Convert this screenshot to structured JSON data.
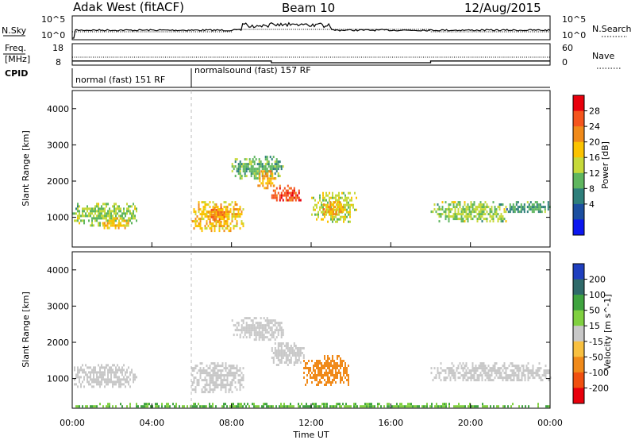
{
  "header": {
    "radar_title": "Adak West (fitACF)",
    "beam": "Beam 10",
    "date": "12/Aug/2015"
  },
  "status_panels": {
    "nsky_label": "N.Sky",
    "nsky_ticks": [
      "10^5",
      "10^0"
    ],
    "nsearch_label": "N.Search",
    "nsearch_ticks": [
      "10^5",
      "10^0"
    ],
    "freq_label_1": "Freq.",
    "freq_label_2": "[MHz]",
    "freq_ticks": [
      "18",
      "8"
    ],
    "nave_label": "Nave",
    "nave_ticks": [
      "60",
      "0"
    ],
    "cpid_label": "CPID",
    "cpid_segments": [
      {
        "label": "normal (fast) 151 RF",
        "start_hour": 0,
        "end_hour": 6
      },
      {
        "label": "normalsound (fast) 157 RF",
        "start_hour": 6,
        "end_hour": 24
      }
    ],
    "freq_mhz": [
      {
        "start_hour": 0,
        "end_hour": 10,
        "value": 10.6
      },
      {
        "start_hour": 10,
        "end_hour": 18,
        "value": 9.5
      },
      {
        "start_hour": 18,
        "end_hour": 24,
        "value": 10.6
      }
    ]
  },
  "chart_data": [
    {
      "type": "heatmap",
      "panel": "power",
      "ylabel": "Slant Range [km]",
      "xlabel": "",
      "xlim": [
        0,
        24
      ],
      "ylim": [
        180,
        4500
      ],
      "x_ticks": [
        "00:00",
        "04:00",
        "08:00",
        "12:00",
        "16:00",
        "20:00",
        "00:00"
      ],
      "y_ticks": [
        1000,
        2000,
        3000,
        4000
      ],
      "colorbar": {
        "label": "Power [dB]",
        "ticks": [
          "28",
          "24",
          "20",
          "16",
          "12",
          "8",
          "4"
        ],
        "colors": [
          "#e8000c",
          "#f5551d",
          "#f08a1a",
          "#fbc300",
          "#c6d93a",
          "#5fb65f",
          "#2e7f7b",
          "#1c4fa0",
          "#0c17f0"
        ]
      },
      "regions": [
        {
          "t0": 0.0,
          "t1": 3.2,
          "r0": 800,
          "r1": 1400,
          "level": 14
        },
        {
          "t0": 1.5,
          "t1": 2.8,
          "r0": 700,
          "r1": 1000,
          "level": 20
        },
        {
          "t0": 6.0,
          "t1": 8.6,
          "r0": 650,
          "r1": 1450,
          "level": 20
        },
        {
          "t0": 6.8,
          "t1": 7.6,
          "r0": 850,
          "r1": 1300,
          "level": 26
        },
        {
          "t0": 8.0,
          "t1": 10.6,
          "r0": 2100,
          "r1": 2700,
          "level": 12
        },
        {
          "t0": 9.3,
          "t1": 10.2,
          "r0": 1800,
          "r1": 2300,
          "level": 22
        },
        {
          "t0": 10.0,
          "t1": 11.5,
          "r0": 1450,
          "r1": 1900,
          "level": 28
        },
        {
          "t0": 12.0,
          "t1": 14.3,
          "r0": 900,
          "r1": 1700,
          "level": 16
        },
        {
          "t0": 12.6,
          "t1": 13.6,
          "r0": 1100,
          "r1": 1450,
          "level": 22
        },
        {
          "t0": 18.0,
          "t1": 21.8,
          "r0": 900,
          "r1": 1450,
          "level": 14
        },
        {
          "t0": 21.8,
          "t1": 24.0,
          "r0": 1150,
          "r1": 1450,
          "level": 10
        }
      ]
    },
    {
      "type": "heatmap",
      "panel": "velocity",
      "ylabel": "Slant Range [km]",
      "xlabel": "Time UT",
      "xlim": [
        0,
        24
      ],
      "ylim": [
        180,
        4500
      ],
      "x_ticks": [
        "00:00",
        "04:00",
        "08:00",
        "12:00",
        "16:00",
        "20:00",
        "00:00"
      ],
      "y_ticks": [
        1000,
        2000,
        3000,
        4000
      ],
      "colorbar": {
        "label": "Velocity [m s^-1]",
        "ticks": [
          "200",
          "100",
          "50",
          "15",
          "-15",
          "-50",
          "-100",
          "-200"
        ],
        "colors": [
          "#1f3fbf",
          "#2f6a6a",
          "#3fa33f",
          "#80d040",
          "#c8c8c8",
          "#f8c040",
          "#f08a1a",
          "#f05010",
          "#e8000c"
        ]
      },
      "regions": [
        {
          "t0": 0.0,
          "t1": 3.2,
          "r0": 800,
          "r1": 1400,
          "level": 0
        },
        {
          "t0": 6.0,
          "t1": 8.6,
          "r0": 650,
          "r1": 1450,
          "level": 0
        },
        {
          "t0": 8.0,
          "t1": 10.6,
          "r0": 2100,
          "r1": 2700,
          "level": 0
        },
        {
          "t0": 10.0,
          "t1": 11.6,
          "r0": 1400,
          "r1": 2000,
          "level": 0
        },
        {
          "t0": 11.6,
          "t1": 13.9,
          "r0": 800,
          "r1": 1650,
          "level": -70
        },
        {
          "t0": 18.0,
          "t1": 24.0,
          "r0": 950,
          "r1": 1450,
          "level": 0
        },
        {
          "t0": 0.0,
          "t1": 24.0,
          "r0": 200,
          "r1": 330,
          "level": 30
        }
      ]
    }
  ]
}
